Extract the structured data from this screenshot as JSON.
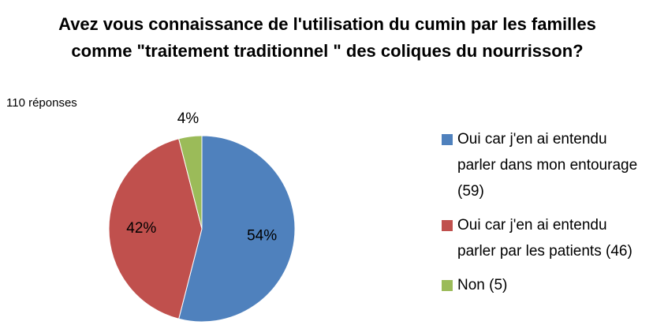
{
  "chart_data": {
    "type": "pie",
    "title": "Avez vous connaissance de l'utilisation du cumin par les familles comme \"traitement traditionnel \" des coliques du nourrisson?",
    "subtitle": "110 réponses",
    "categories": [
      "Oui car j'en ai entendu parler dans mon entourage (59)",
      "Oui car j'en ai entendu parler par les patients (46)",
      "Non (5)"
    ],
    "values": [
      54,
      42,
      4
    ],
    "value_labels": [
      "54%",
      "42%",
      "4%"
    ],
    "colors": [
      "#4f81bd",
      "#c0504d",
      "#9bbb59"
    ],
    "legend": "right"
  }
}
